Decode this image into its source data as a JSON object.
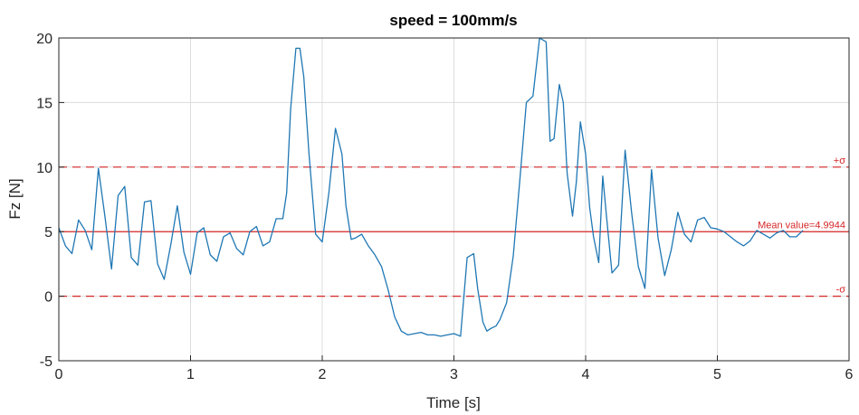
{
  "chart_data": {
    "type": "line",
    "title": "speed = 100mm/s",
    "xlabel": "Time [s]",
    "ylabel": "Fz [N]",
    "xlim": [
      0,
      6
    ],
    "ylim": [
      -5,
      20
    ],
    "xticks": [
      0,
      1,
      2,
      3,
      4,
      5,
      6
    ],
    "yticks": [
      -5,
      0,
      5,
      10,
      15,
      20
    ],
    "grid": true,
    "line_color": "#1f77b4",
    "ref_color": "#d62728",
    "reference_lines": [
      {
        "value": 10,
        "style": "dashed",
        "label": "+σ"
      },
      {
        "value": 4.9944,
        "style": "solid",
        "label": "Mean value=4.9944"
      },
      {
        "value": 0,
        "style": "dashed",
        "label": "-σ"
      }
    ],
    "series": [
      {
        "x": [
          0.0,
          0.05,
          0.1,
          0.15,
          0.2,
          0.25,
          0.3,
          0.35,
          0.4,
          0.45,
          0.5,
          0.55,
          0.6,
          0.65,
          0.7,
          0.75,
          0.8,
          0.85,
          0.9,
          0.95,
          1.0,
          1.05,
          1.1,
          1.15,
          1.2,
          1.25,
          1.3,
          1.35,
          1.4,
          1.45,
          1.5,
          1.55,
          1.6,
          1.65,
          1.7,
          1.73,
          1.76,
          1.8,
          1.83,
          1.86,
          1.9,
          1.95,
          2.0,
          2.05,
          2.1,
          2.15,
          2.18,
          2.22,
          2.25,
          2.3,
          2.35,
          2.4,
          2.45,
          2.5,
          2.55,
          2.6,
          2.65,
          2.7,
          2.75,
          2.8,
          2.85,
          2.9,
          2.95,
          3.0,
          3.05,
          3.1,
          3.15,
          3.18,
          3.22,
          3.25,
          3.28,
          3.32,
          3.35,
          3.4,
          3.45,
          3.5,
          3.55,
          3.6,
          3.65,
          3.7,
          3.73,
          3.76,
          3.8,
          3.83,
          3.86,
          3.9,
          3.93,
          3.96,
          4.0,
          4.03,
          4.06,
          4.1,
          4.13,
          4.16,
          4.2,
          4.25,
          4.3,
          4.35,
          4.4,
          4.45,
          4.5,
          4.55,
          4.6,
          4.65,
          4.7,
          4.75,
          4.8,
          4.85,
          4.9,
          4.95,
          5.0,
          5.05,
          5.1,
          5.15,
          5.2,
          5.25,
          5.3,
          5.35,
          5.4,
          5.45,
          5.5,
          5.55,
          5.6,
          5.65
        ],
        "y": [
          5.3,
          3.9,
          3.3,
          5.9,
          5.1,
          3.6,
          9.9,
          6.2,
          2.1,
          7.8,
          8.5,
          3.0,
          2.4,
          7.3,
          7.4,
          2.5,
          1.3,
          4.0,
          7.0,
          3.4,
          1.7,
          4.9,
          5.3,
          3.2,
          2.7,
          4.6,
          4.9,
          3.7,
          3.2,
          5.0,
          5.4,
          3.9,
          4.2,
          6.0,
          6.0,
          8.0,
          14.5,
          19.2,
          19.2,
          17.0,
          11.0,
          4.8,
          4.2,
          8.0,
          13.0,
          11.0,
          7.0,
          4.4,
          4.5,
          4.8,
          3.9,
          3.2,
          2.3,
          0.5,
          -1.6,
          -2.7,
          -3.0,
          -2.9,
          -2.8,
          -3.0,
          -3.0,
          -3.1,
          -3.0,
          -2.9,
          -3.1,
          3.0,
          3.3,
          0.6,
          -2.0,
          -2.7,
          -2.5,
          -2.3,
          -1.8,
          -0.5,
          3.1,
          9.0,
          15.0,
          15.5,
          20.0,
          19.7,
          12.0,
          12.2,
          16.4,
          15.0,
          9.5,
          6.2,
          8.9,
          13.5,
          11.0,
          6.9,
          4.6,
          2.6,
          9.3,
          6.0,
          1.8,
          2.4,
          11.3,
          6.4,
          2.3,
          0.6,
          9.8,
          4.5,
          1.6,
          3.6,
          6.5,
          4.8,
          4.2,
          5.9,
          6.1,
          5.3,
          5.2,
          5.0,
          4.6,
          4.2,
          3.9,
          4.3,
          5.1,
          4.8,
          4.5,
          4.9,
          5.1,
          4.6,
          4.6,
          5.1
        ]
      }
    ]
  }
}
